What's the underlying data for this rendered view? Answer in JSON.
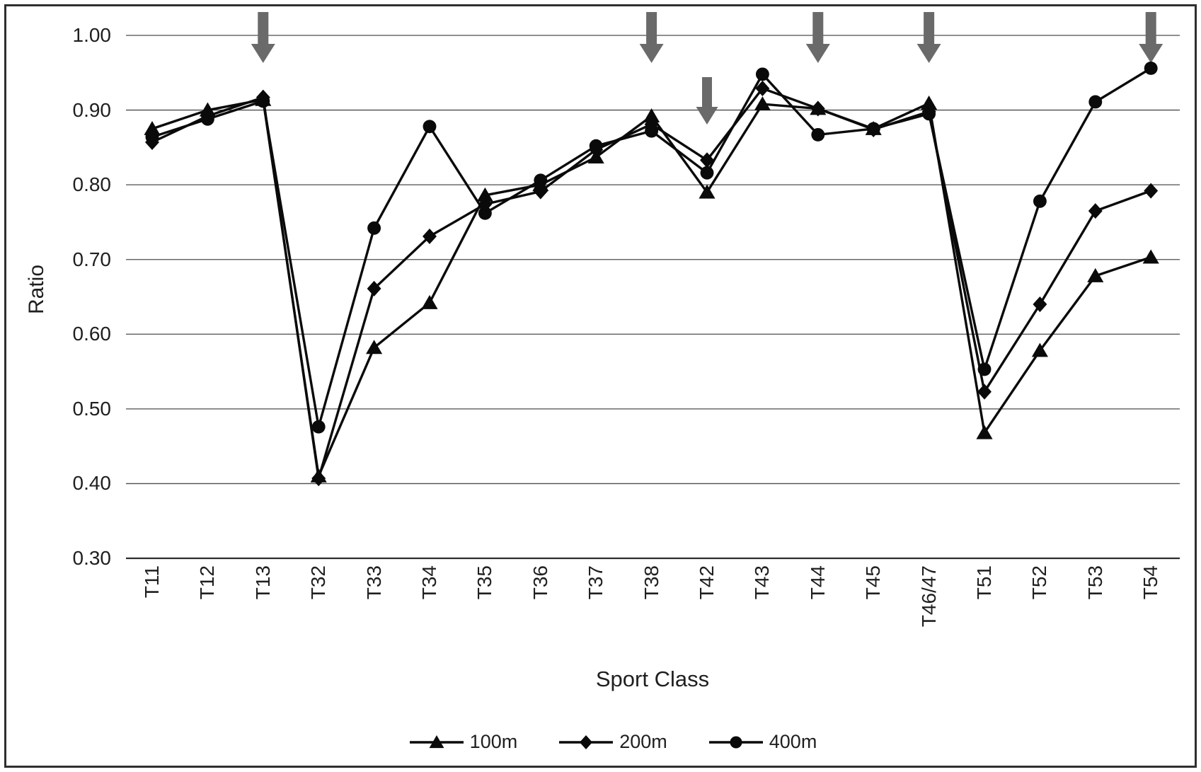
{
  "figure": {
    "y_axis_label": "Ratio",
    "x_axis_label": "Sport Class"
  },
  "chart_data": {
    "type": "line",
    "title": "",
    "xlabel": "Sport Class",
    "ylabel": "Ratio",
    "categories": [
      "T11",
      "T12",
      "T13",
      "T32",
      "T33",
      "T34",
      "T35",
      "T36",
      "T37",
      "T38",
      "T42",
      "T43",
      "T44",
      "T45",
      "T46/47",
      "T51",
      "T52",
      "T53",
      "T54"
    ],
    "series": [
      {
        "name": "100m",
        "marker": "triangle",
        "values": [
          0.875,
          0.9,
          0.914,
          0.41,
          0.582,
          0.642,
          0.786,
          0.8,
          0.837,
          0.892,
          0.79,
          0.908,
          0.902,
          0.875,
          0.909,
          0.468,
          0.578,
          0.678,
          0.703
        ]
      },
      {
        "name": "200m",
        "marker": "diamond",
        "values": [
          0.857,
          0.892,
          0.917,
          0.407,
          0.661,
          0.731,
          0.774,
          0.791,
          0.847,
          0.881,
          0.833,
          0.929,
          0.902,
          0.874,
          0.898,
          0.523,
          0.64,
          0.765,
          0.792
        ]
      },
      {
        "name": "400m",
        "marker": "circle",
        "values": [
          0.864,
          0.888,
          0.912,
          0.476,
          0.742,
          0.878,
          0.762,
          0.806,
          0.852,
          0.872,
          0.816,
          0.948,
          0.867,
          0.875,
          0.895,
          0.553,
          0.778,
          0.911,
          0.956
        ]
      }
    ],
    "ylim": [
      0.3,
      1.0
    ],
    "ytick_labels": [
      "1.00",
      "0.90",
      "0.80",
      "0.70",
      "0.60",
      "0.50",
      "0.40",
      "0.30"
    ],
    "grid": "horizontal",
    "legend_position": "bottom",
    "annotations": {
      "arrows": [
        {
          "category": "T13",
          "size": "large"
        },
        {
          "category": "T38",
          "size": "large"
        },
        {
          "category": "T42",
          "size": "small"
        },
        {
          "category": "T44",
          "size": "large"
        },
        {
          "category": "T46/47",
          "size": "large"
        },
        {
          "category": "T54",
          "size": "large"
        }
      ]
    },
    "colors": {
      "line": "#0a0a0a",
      "grid": "#4d4d4d",
      "axis": "#2d2d2d",
      "arrow": "#6a6a6a",
      "border": "#2f2f2f",
      "text": "#1f1f1f"
    }
  }
}
